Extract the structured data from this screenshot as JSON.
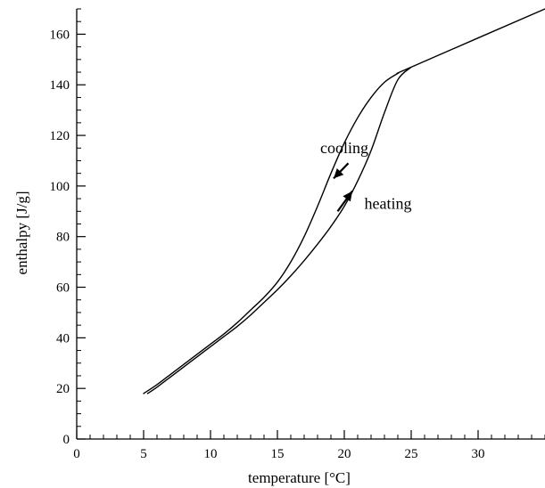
{
  "chart_data": {
    "type": "line",
    "title": "",
    "xlabel": "temperature [°C]",
    "ylabel": "enthalpy [J/g]",
    "xlim": [
      0,
      35
    ],
    "ylim": [
      0,
      170
    ],
    "xticks": [
      0,
      5,
      10,
      15,
      20,
      25,
      30
    ],
    "yticks": [
      0,
      20,
      40,
      60,
      80,
      100,
      120,
      140,
      160
    ],
    "x_minor_step": 1,
    "y_minor_step": 5,
    "grid": false,
    "legend": "none",
    "series": [
      {
        "label_ref": "cooling",
        "x": [
          5.0,
          6.0,
          7.0,
          8.0,
          9.0,
          10.0,
          11.0,
          12.0,
          13.0,
          14.0,
          15.0,
          16.0,
          17.0,
          18.0,
          19.0,
          20.0,
          21.0,
          22.0,
          23.0,
          24.0,
          25.0,
          35.0
        ],
        "y": [
          18,
          21.5,
          25.5,
          29.5,
          33.5,
          37.5,
          41.5,
          46,
          51,
          56,
          62,
          70,
          80,
          92,
          105,
          117,
          127,
          135,
          141,
          144.5,
          147,
          170
        ]
      },
      {
        "label_ref": "heating",
        "x": [
          5.3,
          6.0,
          7.0,
          8.0,
          9.0,
          10.0,
          11.0,
          12.0,
          13.0,
          14.0,
          15.0,
          16.0,
          17.0,
          18.0,
          19.0,
          20.0,
          21.0,
          22.0,
          23.0,
          24.0,
          25.0
        ],
        "y": [
          18,
          20.5,
          24.5,
          28.5,
          32.5,
          36.5,
          40.5,
          44.5,
          49,
          54,
          59,
          64.5,
          70.5,
          77,
          84,
          92,
          102,
          114,
          129,
          142,
          147
        ]
      }
    ],
    "annotations": [
      {
        "text": "cooling",
        "x": 18.2,
        "y": 113
      },
      {
        "text": "heating",
        "x": 21.5,
        "y": 91
      }
    ],
    "arrows": [
      {
        "series": "cooling",
        "from": [
          20.3,
          109
        ],
        "to": [
          19.2,
          103
        ]
      },
      {
        "series": "heating",
        "from": [
          19.5,
          90
        ],
        "to": [
          20.6,
          98
        ]
      }
    ]
  }
}
